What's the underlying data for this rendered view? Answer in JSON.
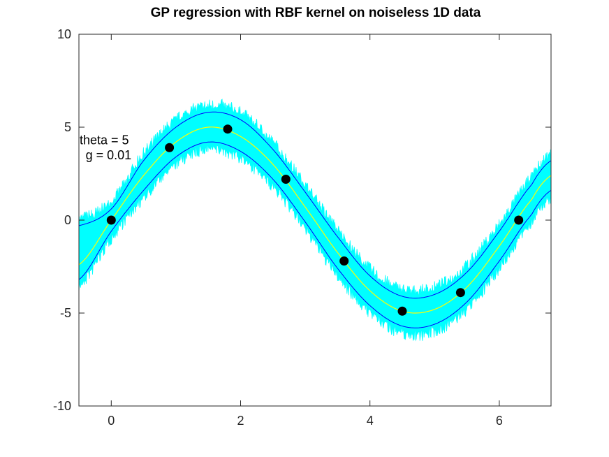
{
  "chart_data": {
    "type": "line",
    "title": "GP regression with RBF kernel on noiseless 1D data",
    "xlabel": "",
    "ylabel": "",
    "xlim": [
      -0.5,
      6.8
    ],
    "ylim": [
      -10,
      10
    ],
    "x_ticks": [
      0,
      2,
      4,
      6
    ],
    "y_ticks": [
      10,
      5,
      0,
      -5,
      -10
    ],
    "grid": false,
    "legend": "none",
    "annotations": [
      {
        "text": "theta = 5",
        "x": -0.5,
        "y": 4.3
      },
      {
        "text": "g = 0.01",
        "x": -0.45,
        "y": 3.5
      }
    ],
    "series": [
      {
        "role": "training-points",
        "kind": "scatter",
        "color": "#000000",
        "x": [
          0,
          0.9,
          1.8,
          2.7,
          3.6,
          4.5,
          5.4,
          6.3
        ],
        "y": [
          0.0,
          3.9,
          4.9,
          2.2,
          -2.2,
          -4.9,
          -3.9,
          0.0
        ]
      },
      {
        "role": "posterior-mean",
        "kind": "line",
        "color": "#ffff00",
        "x": [
          -0.5,
          0,
          0.5,
          1,
          1.5,
          2,
          2.5,
          3,
          3.5,
          4,
          4.5,
          5,
          5.5,
          6,
          6.5,
          6.8
        ],
        "y": [
          -2.4,
          0.0,
          2.4,
          4.2,
          5.0,
          4.5,
          3.0,
          0.7,
          -1.75,
          -3.8,
          -4.9,
          -4.8,
          -3.6,
          -1.4,
          1.1,
          2.4
        ]
      },
      {
        "role": "upper-band",
        "kind": "line",
        "color": "#0000ff",
        "x": [
          -0.5,
          0,
          0.5,
          1,
          1.5,
          2,
          2.5,
          3,
          3.5,
          4,
          4.5,
          5,
          5.5,
          6,
          6.5,
          6.8
        ],
        "y": [
          -0.3,
          0.6,
          3.2,
          5.0,
          5.8,
          5.4,
          3.8,
          1.5,
          -0.9,
          -3.0,
          -4.1,
          -4.0,
          -2.8,
          -0.6,
          1.9,
          3.2
        ]
      },
      {
        "role": "lower-band",
        "kind": "line",
        "color": "#0000ff",
        "x": [
          -0.5,
          0,
          0.5,
          1,
          1.5,
          2,
          2.5,
          3,
          3.5,
          4,
          4.5,
          5,
          5.5,
          6,
          6.5,
          6.8
        ],
        "y": [
          -3.2,
          -0.6,
          1.6,
          3.4,
          4.2,
          3.7,
          2.2,
          -0.1,
          -2.6,
          -4.6,
          -5.7,
          -5.6,
          -4.4,
          -2.2,
          0.3,
          1.6
        ]
      },
      {
        "role": "posterior-samples",
        "kind": "area",
        "color": "#00ffff",
        "spread": 1.8
      }
    ]
  }
}
